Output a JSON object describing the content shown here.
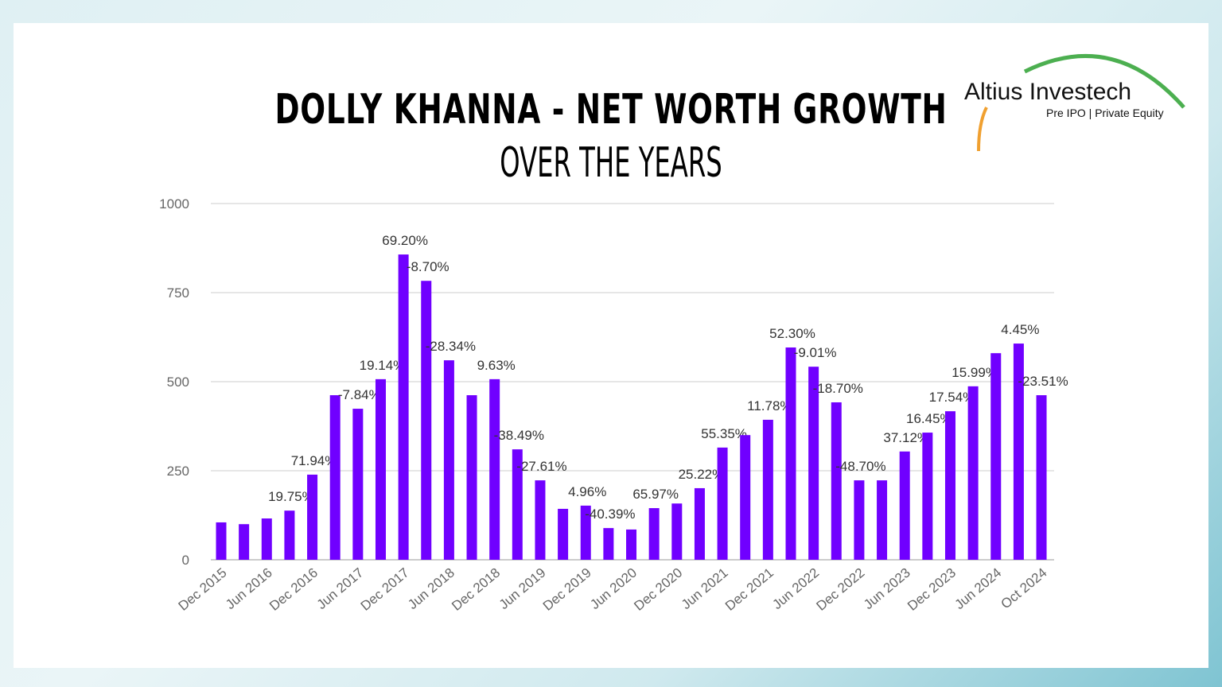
{
  "header": {
    "title": "DOLLY KHANNA - NET WORTH GROWTH",
    "subtitle": "OVER THE YEARS"
  },
  "logo": {
    "name": "Altius Investech",
    "tagline": "Pre IPO | Private Equity",
    "colors": {
      "arc": "#4caf50",
      "accent": "#f0a030"
    }
  },
  "chart_data": {
    "type": "bar",
    "title": "DOLLY KHANNA - NET WORTH GROWTH OVER THE YEARS",
    "xlabel": "",
    "ylabel": "",
    "ylim": [
      0,
      1000
    ],
    "yticks": [
      0,
      250,
      500,
      750,
      1000
    ],
    "grid": true,
    "bar_color": "#7000ff",
    "tick_labels": [
      "Dec 2015",
      "Jun 2016",
      "Dec 2016",
      "Jun 2017",
      "Dec 2017",
      "Jun 2018",
      "Dec 2018",
      "Jun 2019",
      "Dec 2019",
      "Jun 2020",
      "Dec 2020",
      "Jun 2021",
      "Dec 2021",
      "Jun 2022",
      "Dec 2022",
      "Jun 2023",
      "Dec 2023",
      "Jun 2024",
      "Oct 2024"
    ],
    "values": [
      105,
      100,
      116,
      138,
      239,
      462,
      424,
      507,
      857,
      783,
      560,
      462,
      507,
      310,
      223,
      143,
      152,
      89,
      85,
      145,
      158,
      201,
      315,
      350,
      393,
      596,
      542,
      442,
      223,
      223,
      304,
      357,
      417,
      487,
      580,
      607,
      462
    ],
    "data_labels": [
      null,
      null,
      null,
      "19.75%",
      "71.94%",
      null,
      "-7.84%",
      "19.14%",
      "69.20%",
      "-8.70%",
      "-28.34%",
      null,
      "9.63%",
      "-38.49%",
      "-27.61%",
      null,
      "4.96%",
      "-40.39%",
      null,
      "65.97%",
      null,
      "25.22%",
      "55.35%",
      null,
      "11.78%",
      "52.30%",
      "-9.01%",
      "-18.70%",
      "-48.70%",
      null,
      "37.12%",
      "16.45%",
      "17.54%",
      "15.99%",
      null,
      "4.45%",
      "-23.51%"
    ]
  }
}
